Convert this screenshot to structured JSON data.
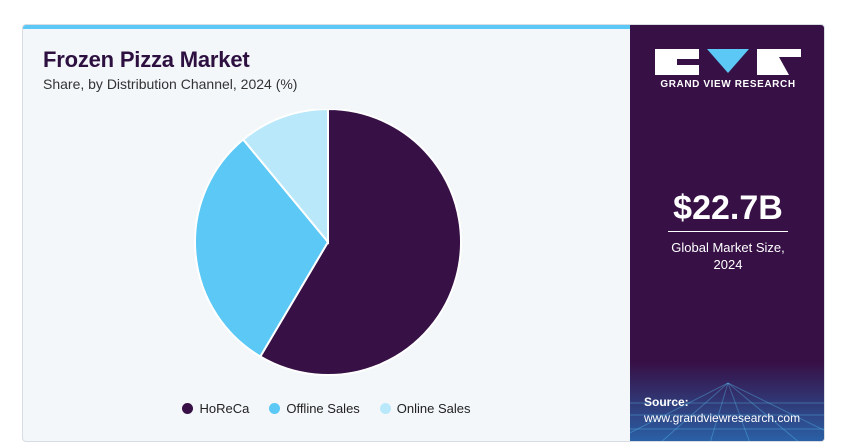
{
  "chart_data": {
    "type": "pie",
    "title": "Frozen Pizza Market",
    "subtitle": "Share, by Distribution Channel, 2024 (%)",
    "series": [
      {
        "name": "HoReCa",
        "value": 58.5,
        "color": "#371046"
      },
      {
        "name": "Offline Sales",
        "value": 30.5,
        "color": "#5bc8f5"
      },
      {
        "name": "Online Sales",
        "value": 11.0,
        "color": "#b9e8fb"
      }
    ],
    "legend": "bottom"
  },
  "brand": {
    "name": "GRAND VIEW RESEARCH",
    "logo_icon": "gvr-logo-icon"
  },
  "stat": {
    "value": "$22.7B",
    "label_line1": "Global Market Size,",
    "label_line2": "2024"
  },
  "source": {
    "label": "Source:",
    "url": "www.grandviewresearch.com"
  },
  "colors": {
    "accent": "#5bc8f5",
    "panel": "#371046"
  }
}
